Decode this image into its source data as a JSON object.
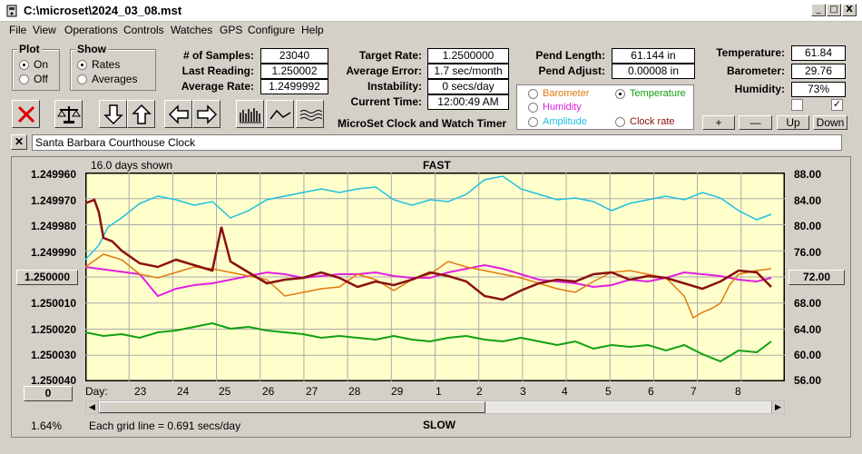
{
  "window": {
    "title": "C:\\microset\\2024_03_08.mst",
    "minimize": "_",
    "maximize": "□",
    "close": "X"
  },
  "menu": [
    "File",
    "View",
    "Operations",
    "Controls",
    "Watches",
    "GPS",
    "Configure",
    "Help"
  ],
  "plot_group": {
    "label": "Plot",
    "options": [
      "On",
      "Off"
    ],
    "selected": "On"
  },
  "show_group": {
    "label": "Show",
    "options": [
      "Rates",
      "Averages"
    ],
    "selected": "Rates"
  },
  "stats": {
    "samples_label": "# of Samples:",
    "samples": "23040",
    "last_label": "Last Reading:",
    "last": "1.250002",
    "avg_label": "Average Rate:",
    "avg": "1.2499992",
    "target_label": "Target Rate:",
    "target": "1.2500000",
    "err_label": "Average Error:",
    "err": "1.7 sec/month",
    "inst_label": "Instability:",
    "inst": "0 secs/day",
    "time_label": "Current Time:",
    "time": "12:00:49 AM",
    "pend_len_label": "Pend Length:",
    "pend_len": "61.144 in",
    "pend_adj_label": "Pend Adjust:",
    "pend_adj": "0.00008 in",
    "temp_label": "Temperature:",
    "temp": "61.84",
    "baro_label": "Barometer:",
    "baro": "29.76",
    "hum_label": "Humidity:",
    "hum": "73%"
  },
  "app_caption": "MicroSet Clock and Watch Timer",
  "series_select": {
    "options": [
      {
        "label": "Barometer",
        "color": "#e07a10",
        "checked": false
      },
      {
        "label": "Temperature",
        "color": "#10a010",
        "checked": true
      },
      {
        "label": "Humidity",
        "color": "#e020e0",
        "checked": false
      },
      {
        "label": "Clock rate",
        "color": "#8b1010",
        "checked": false
      },
      {
        "label": "Amplitude",
        "color": "#20c0e0",
        "checked": false
      }
    ]
  },
  "scale_buttons": {
    "plus": "+",
    "minus": "—",
    "up": "Up",
    "down": "Down"
  },
  "clock_name": "Santa Barbara Courthouse Clock",
  "clear_button": "✕",
  "plot": {
    "days_shown": "16.0 days shown",
    "top_label": "FAST",
    "bottom_label": "SLOW",
    "grid_note": "Each grid line = 0.691 secs/day",
    "percent": "1.64%",
    "day_label": "Day:",
    "left_axis": [
      "1.249960",
      "1.249970",
      "1.249980",
      "1.249990",
      "1.250000",
      "1.250010",
      "1.250020",
      "1.250030",
      "1.250040"
    ],
    "right_axis": [
      "88.00",
      "84.00",
      "80.00",
      "76.00",
      "72.00",
      "68.00",
      "64.00",
      "60.00",
      "56.00"
    ],
    "center_button": "1.250000",
    "right_button": "72.00",
    "zero_button": "0",
    "days": [
      "23",
      "24",
      "25",
      "26",
      "27",
      "28",
      "29",
      "1",
      "2",
      "3",
      "4",
      "5",
      "6",
      "7",
      "8"
    ]
  }
}
